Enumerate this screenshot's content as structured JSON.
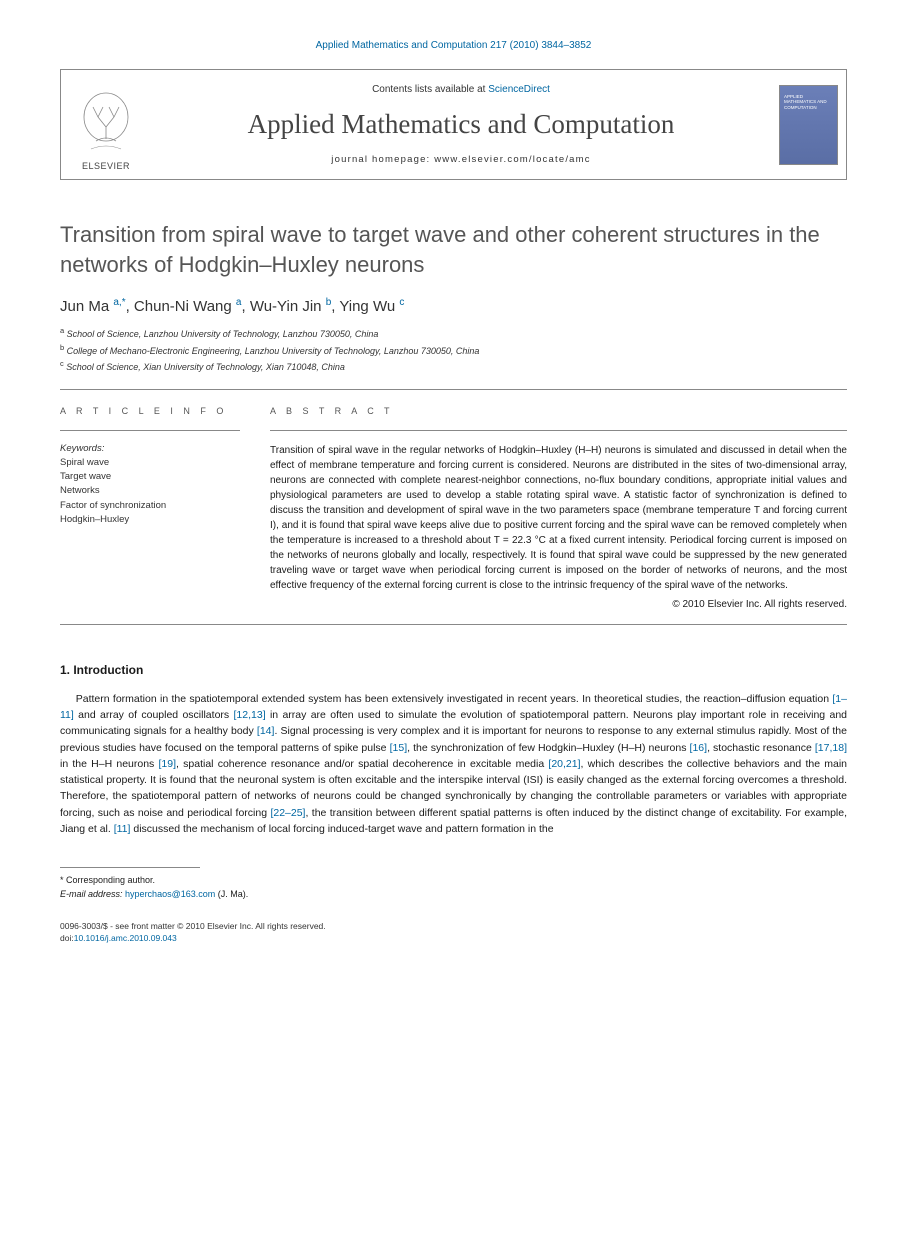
{
  "journal_ref": "Applied Mathematics and Computation 217 (2010) 3844–3852",
  "header": {
    "contents_prefix": "Contents lists available at ",
    "contents_link": "ScienceDirect",
    "journal_title": "Applied Mathematics and Computation",
    "homepage_label": "journal homepage: www.elsevier.com/locate/amc",
    "publisher": "ELSEVIER"
  },
  "article": {
    "title": "Transition from spiral wave to target wave and other coherent structures in the networks of Hodgkin–Huxley neurons",
    "authors_html": "Jun Ma <sup class='sup-link'>a,*</sup>, Chun-Ni Wang <sup class='sup-link'>a</sup>, Wu-Yin Jin <sup class='sup-link'>b</sup>, Ying Wu <sup class='sup-link'>c</sup>"
  },
  "affiliations": [
    {
      "sup": "a",
      "text": "School of Science, Lanzhou University of Technology, Lanzhou 730050, China"
    },
    {
      "sup": "b",
      "text": "College of Mechano-Electronic Engineering, Lanzhou University of Technology, Lanzhou 730050, China"
    },
    {
      "sup": "c",
      "text": "School of Science, Xian University of Technology, Xian 710048, China"
    }
  ],
  "info_head": "A R T I C L E   I N F O",
  "abstract_head": "A B S T R A C T",
  "keywords_label": "Keywords:",
  "keywords": [
    "Spiral wave",
    "Target wave",
    "Networks",
    "Factor of synchronization",
    "Hodgkin–Huxley"
  ],
  "abstract": "Transition of spiral wave in the regular networks of Hodgkin–Huxley (H–H) neurons is simulated and discussed in detail when the effect of membrane temperature and forcing current is considered. Neurons are distributed in the sites of two-dimensional array, neurons are connected with complete nearest-neighbor connections, no-flux boundary conditions, appropriate initial values and physiological parameters are used to develop a stable rotating spiral wave. A statistic factor of synchronization is defined to discuss the transition and development of spiral wave in the two parameters space (membrane temperature T and forcing current I), and it is found that spiral wave keeps alive due to positive current forcing and the spiral wave can be removed completely when the temperature is increased to a threshold about T = 22.3 °C at a fixed current intensity. Periodical forcing current is imposed on the networks of neurons globally and locally, respectively. It is found that spiral wave could be suppressed by the new generated traveling wave or target wave when periodical forcing current is imposed on the border of networks of neurons, and the most effective frequency of the external forcing current is close to the intrinsic frequency of the spiral wave of the networks.",
  "copyright": "© 2010 Elsevier Inc. All rights reserved.",
  "intro_head": "1. Introduction",
  "intro_body_html": "Pattern formation in the spatiotemporal extended system has been extensively investigated in recent years. In theoretical studies, the reaction–diffusion equation <a class='ref-link'>[1–11]</a> and array of coupled oscillators <a class='ref-link'>[12,13]</a> in array are often used to simulate the evolution of spatiotemporal pattern. Neurons play important role in receiving and communicating signals for a healthy body <a class='ref-link'>[14]</a>. Signal processing is very complex and it is important for neurons to response to any external stimulus rapidly. Most of the previous studies have focused on the temporal patterns of spike pulse <a class='ref-link'>[15]</a>, the synchronization of few Hodgkin–Huxley (H–H) neurons <a class='ref-link'>[16]</a>, stochastic resonance <a class='ref-link'>[17,18]</a> in the H–H neurons <a class='ref-link'>[19]</a>, spatial coherence resonance and/or spatial decoherence in excitable media <a class='ref-link'>[20,21]</a>, which describes the collective behaviors and the main statistical property. It is found that the neuronal system is often excitable and the interspike interval (ISI) is easily changed as the external forcing overcomes a threshold. Therefore, the spatiotemporal pattern of networks of neurons could be changed synchronically by changing the controllable parameters or variables with appropriate forcing, such as noise and periodical forcing <a class='ref-link'>[22–25]</a>, the transition between different spatial patterns is often induced by the distinct change of excitability. For example, Jiang et al. <a class='ref-link'>[11]</a> discussed the mechanism of local forcing induced-target wave and pattern formation in the",
  "corr": {
    "star": "* Corresponding author.",
    "email_label": "E-mail address:",
    "email": "hyperchaos@163.com",
    "email_suffix": "(J. Ma)."
  },
  "bottom": {
    "issn": "0096-3003/$ - see front matter © 2010 Elsevier Inc. All rights reserved.",
    "doi_label": "doi:",
    "doi": "10.1016/j.amc.2010.09.043"
  },
  "colors": {
    "link": "#0066a1",
    "title_gray": "#555555",
    "border": "#888888"
  }
}
